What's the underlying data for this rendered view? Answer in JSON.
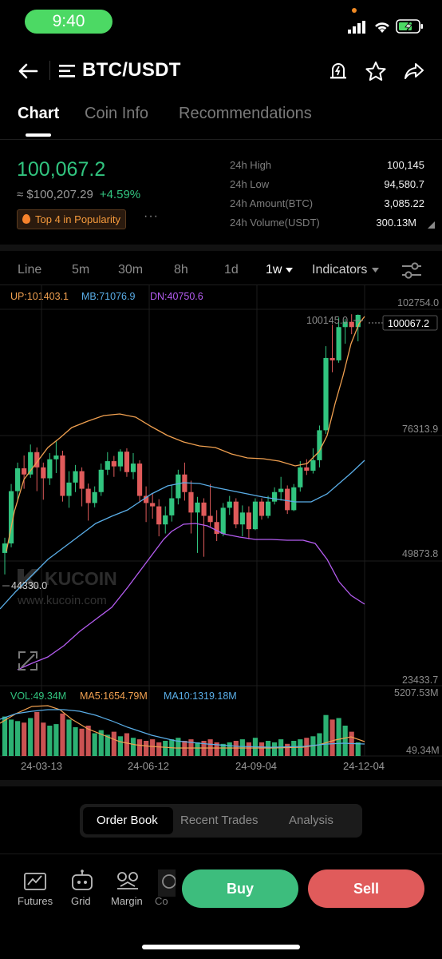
{
  "status_bar": {
    "time": "9:40"
  },
  "header": {
    "pair": "BTC/USDT"
  },
  "tabs": [
    {
      "label": "Chart",
      "active": true
    },
    {
      "label": "Coin Info",
      "active": false
    },
    {
      "label": "Recommendations",
      "active": false
    }
  ],
  "price": {
    "last": "100,067.2",
    "fiat": "≈ $100,207.29",
    "change": "+4.59%",
    "popularity": "Top 4 in Popularity",
    "more": "···"
  },
  "stats": [
    {
      "label": "24h High",
      "value": "100,145"
    },
    {
      "label": "24h Low",
      "value": "94,580.7"
    },
    {
      "label": "24h Amount(BTC)",
      "value": "3,085.22"
    },
    {
      "label": "24h Volume(USDT)",
      "value": "300.13M"
    }
  ],
  "intervals": [
    "Line",
    "5m",
    "30m",
    "8h",
    "1d",
    "1w"
  ],
  "active_interval": "1w",
  "indicators_label": "Indicators",
  "bollinger": {
    "up": "UP:101403.1",
    "mb": "MB:71076.9",
    "dn": "DN:40750.6"
  },
  "price_axis": [
    "102754.0",
    "76313.9",
    "49873.8",
    "23433.7"
  ],
  "price_labels": {
    "high_marker": "100145.0",
    "current": "100067.2",
    "low_marker": "44330.0"
  },
  "watermark": {
    "brand": "KUCOIN",
    "url": "www.kucoin.com"
  },
  "volume": {
    "vol": "VOL:49.34M",
    "ma5": "MA5:1654.79M",
    "ma10": "MA10:1319.18M",
    "axis_top": "5207.53M",
    "axis_bottom": "49.34M"
  },
  "x_axis_dates": [
    "24-03-13",
    "24-06-12",
    "24-09-04",
    "24-12-04"
  ],
  "colors": {
    "up": "#31c47f",
    "down": "#e05b5b",
    "bb_up": "#f0a050",
    "bb_mb": "#5aaee8",
    "bb_dn": "#b45cf0",
    "buy": "#3dbd7d",
    "sell": "#e05b5b"
  },
  "order_tabs": [
    {
      "label": "Order Book",
      "active": true
    },
    {
      "label": "Recent Trades",
      "active": false
    },
    {
      "label": "Analysis",
      "active": false
    }
  ],
  "bottom_nav": [
    {
      "label": "Futures",
      "icon": "futures-chart-icon"
    },
    {
      "label": "Grid",
      "icon": "grid-robot-icon"
    },
    {
      "label": "Margin",
      "icon": "margin-icon"
    },
    {
      "label": "Co",
      "icon": "convert-icon"
    }
  ],
  "actions": {
    "buy": "Buy",
    "sell": "Sell"
  }
}
